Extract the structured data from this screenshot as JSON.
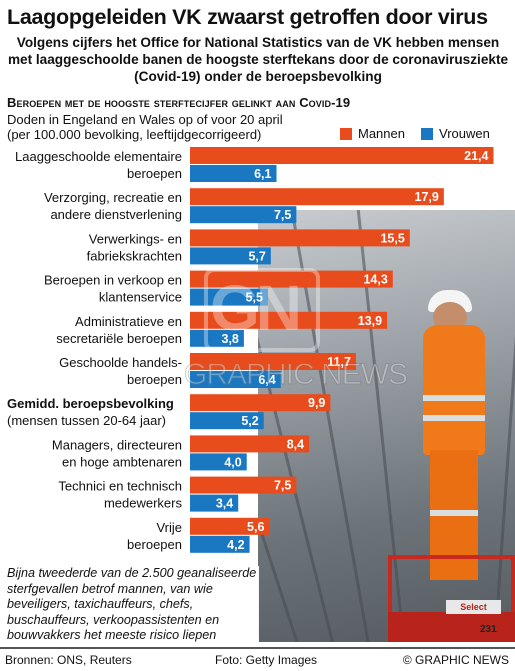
{
  "title": "Laagopgeleiden VK zwaarst getroffen door virus",
  "subtitle": "Volgens cijfers het Office for National Statistics van de VK hebben mensen met laaggeschoolde banen de hoogste sterftekans door de coronavirusziekte (Covid-19) onder de beroepsbevolking",
  "chart_header": "Beroepen met de hoogste sterftecijfer gelinkt aan Covid-19",
  "chart_subtitle_line1": "Doden in Engeland en Wales op of voor 20 april",
  "chart_subtitle_line2": "(per 100.000 bevolking, leeftijdgecorrigeerd)",
  "colors": {
    "men": "#e84c1c",
    "women": "#1a78c2",
    "text": "#111111"
  },
  "photo": {
    "lift_brand": "Select",
    "lift_number": "231"
  },
  "watermark": {
    "letters": "GN",
    "text": "GRAPHIC NEWS"
  },
  "chart_data": {
    "type": "bar",
    "orientation": "horizontal",
    "xlim": [
      0,
      22
    ],
    "legend_position": "top-right",
    "categories": [
      [
        "Laaggeschoolde elementaire",
        "beroepen"
      ],
      [
        "Verzorging, recreatie en",
        "andere dienstverlening"
      ],
      [
        "Verwerkings- en",
        "fabriekskrachten"
      ],
      [
        "Beroepen in verkoop en",
        "klantenservice"
      ],
      [
        "Administratieve en",
        "secretariële beroepen"
      ],
      [
        "Geschoolde handels-",
        "beroepen"
      ],
      [
        "Gemidd. beroepsbevolking",
        "(mensen tussen 20-64 jaar)"
      ],
      [
        "Managers, directeuren",
        "en hoge ambtenaren"
      ],
      [
        "Technici en technisch",
        "medewerkers"
      ],
      [
        "Vrije",
        "beroepen"
      ]
    ],
    "highlight_category_index": 6,
    "series": [
      {
        "name": "Mannen",
        "values": [
          21.4,
          17.9,
          15.5,
          14.3,
          13.9,
          11.7,
          9.9,
          8.4,
          7.5,
          5.6
        ],
        "labels": [
          "21,4",
          "17,9",
          "15,5",
          "14,3",
          "13,9",
          "11,7",
          "9,9",
          "8,4",
          "7,5",
          "5,6"
        ]
      },
      {
        "name": "Vrouwen",
        "values": [
          6.1,
          7.5,
          5.7,
          5.5,
          3.8,
          6.4,
          5.2,
          4.0,
          3.4,
          4.2
        ],
        "labels": [
          "6,1",
          "7,5",
          "5,7",
          "5,5",
          "3,8",
          "6,4",
          "5,2",
          "4,0",
          "3,4",
          "4,2"
        ]
      }
    ]
  },
  "footnote": "Bijna tweederde van de 2.500 geanaliseerde sterfgevallen betrof mannen, van wie beveiligers, taxichauffeurs, chefs, buschauffeurs, verkoopassistenten en bouwvakkers het meeste risico liepen",
  "footer": {
    "sources": "Bronnen: ONS, Reuters",
    "photo_credit": "Foto: Getty Images",
    "copyright": "© GRAPHIC NEWS"
  }
}
